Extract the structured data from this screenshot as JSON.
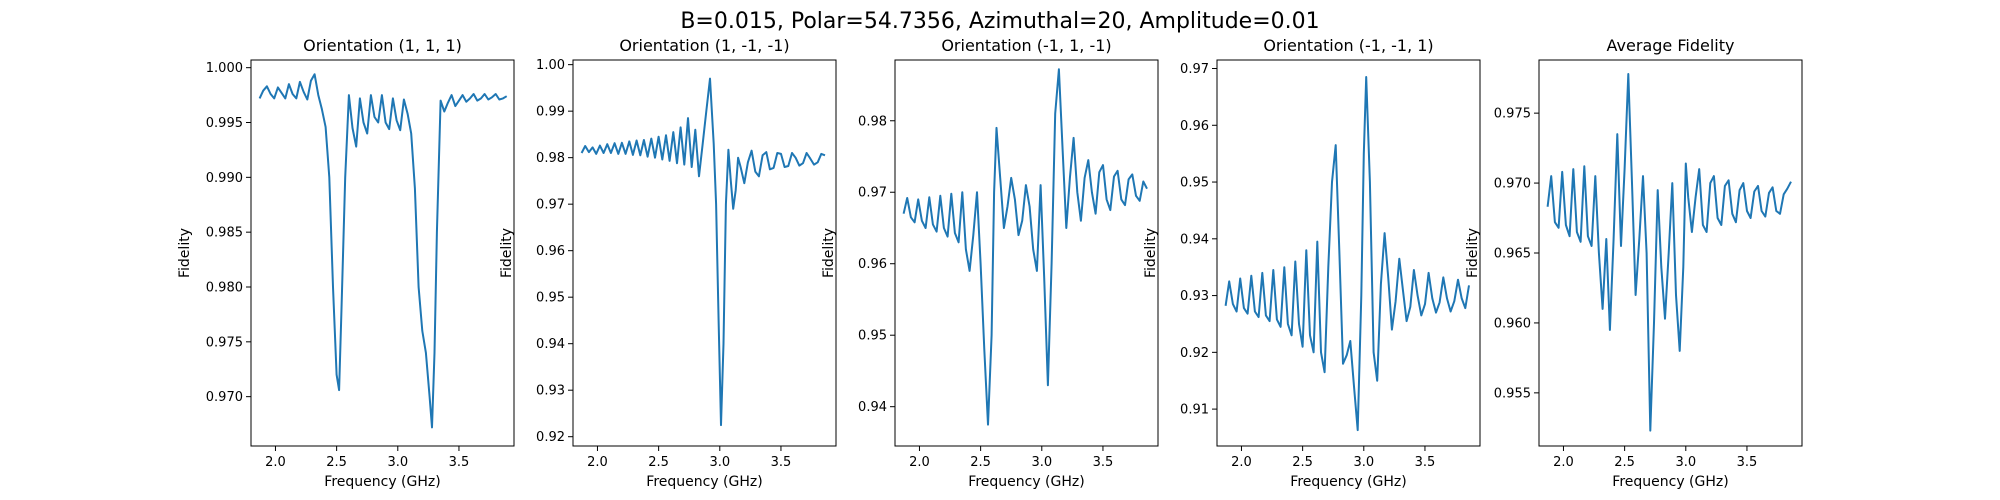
{
  "figure": {
    "suptitle": "B=0.015, Polar=54.7356, Azimuthal=20, Amplitude=0.01"
  },
  "chart_data": [
    {
      "type": "line",
      "title": "Orientation (1, 1, 1)",
      "xlabel": "Frequency (GHz)",
      "ylabel": "Fidelity",
      "xlim": [
        1.8,
        3.95
      ],
      "ylim": [
        0.9655,
        1.0007
      ],
      "xticks": [
        "2.0",
        "2.5",
        "3.0",
        "3.5"
      ],
      "yticks": [
        "0.970",
        "0.975",
        "0.980",
        "0.985",
        "0.990",
        "0.995",
        "1.000"
      ],
      "grid": false,
      "color": "#1f77b4",
      "series": [
        {
          "x": [
            1.87,
            1.9,
            1.93,
            1.96,
            1.99,
            2.02,
            2.05,
            2.08,
            2.11,
            2.14,
            2.17,
            2.2,
            2.23,
            2.26,
            2.29,
            2.32,
            2.35,
            2.38,
            2.41,
            2.44,
            2.47,
            2.5,
            2.52,
            2.54,
            2.57,
            2.6,
            2.63,
            2.66,
            2.69,
            2.72,
            2.75,
            2.78,
            2.81,
            2.84,
            2.87,
            2.9,
            2.93,
            2.96,
            2.99,
            3.02,
            3.05,
            3.08,
            3.11,
            3.14,
            3.17,
            3.2,
            3.23,
            3.26,
            3.28,
            3.3,
            3.32,
            3.35,
            3.38,
            3.41,
            3.44,
            3.47,
            3.5,
            3.53,
            3.56,
            3.59,
            3.62,
            3.65,
            3.68,
            3.71,
            3.74,
            3.77,
            3.8,
            3.83,
            3.86,
            3.89
          ],
          "y": [
            0.9972,
            0.9979,
            0.9983,
            0.9976,
            0.9972,
            0.9982,
            0.9977,
            0.9972,
            0.9985,
            0.9976,
            0.9972,
            0.9987,
            0.9978,
            0.9971,
            0.9988,
            0.9994,
            0.9975,
            0.9962,
            0.9946,
            0.99,
            0.98,
            0.972,
            0.9706,
            0.978,
            0.99,
            0.9975,
            0.9945,
            0.9928,
            0.9972,
            0.995,
            0.994,
            0.9975,
            0.9955,
            0.995,
            0.9975,
            0.995,
            0.9944,
            0.9972,
            0.9952,
            0.9943,
            0.9971,
            0.9958,
            0.994,
            0.989,
            0.98,
            0.976,
            0.974,
            0.97,
            0.9672,
            0.974,
            0.985,
            0.997,
            0.996,
            0.9968,
            0.9975,
            0.9965,
            0.997,
            0.9975,
            0.9969,
            0.9972,
            0.9976,
            0.997,
            0.9972,
            0.9976,
            0.9971,
            0.9973,
            0.9976,
            0.9971,
            0.9972,
            0.9974
          ]
        }
      ]
    },
    {
      "type": "line",
      "title": "Orientation (1, -1, -1)",
      "xlabel": "Frequency (GHz)",
      "ylabel": "Fidelity",
      "xlim": [
        1.8,
        3.95
      ],
      "ylim": [
        0.918,
        1.001
      ],
      "xticks": [
        "2.0",
        "2.5",
        "3.0",
        "3.5"
      ],
      "yticks": [
        "0.92",
        "0.93",
        "0.94",
        "0.95",
        "0.96",
        "0.97",
        "0.98",
        "0.99",
        "1.00"
      ],
      "grid": false,
      "color": "#1f77b4",
      "series": [
        {
          "x": [
            1.87,
            1.9,
            1.93,
            1.96,
            1.99,
            2.02,
            2.05,
            2.08,
            2.11,
            2.14,
            2.17,
            2.2,
            2.23,
            2.26,
            2.29,
            2.32,
            2.35,
            2.38,
            2.41,
            2.44,
            2.47,
            2.5,
            2.53,
            2.56,
            2.59,
            2.62,
            2.65,
            2.68,
            2.71,
            2.74,
            2.77,
            2.8,
            2.83,
            2.86,
            2.89,
            2.92,
            2.95,
            2.97,
            2.99,
            3.01,
            3.03,
            3.05,
            3.07,
            3.09,
            3.11,
            3.13,
            3.15,
            3.17,
            3.2,
            3.23,
            3.26,
            3.29,
            3.32,
            3.35,
            3.38,
            3.41,
            3.44,
            3.47,
            3.5,
            3.53,
            3.56,
            3.59,
            3.62,
            3.65,
            3.68,
            3.71,
            3.74,
            3.77,
            3.8,
            3.83,
            3.86
          ],
          "y": [
            0.981,
            0.9825,
            0.9812,
            0.9822,
            0.9808,
            0.9826,
            0.981,
            0.9829,
            0.981,
            0.9831,
            0.9808,
            0.9832,
            0.9808,
            0.9835,
            0.9806,
            0.9837,
            0.9805,
            0.9838,
            0.9802,
            0.9841,
            0.98,
            0.9845,
            0.9796,
            0.9848,
            0.9793,
            0.9855,
            0.9788,
            0.9865,
            0.9785,
            0.9885,
            0.978,
            0.986,
            0.976,
            0.983,
            0.99,
            0.997,
            0.983,
            0.97,
            0.945,
            0.9225,
            0.94,
            0.97,
            0.9817,
            0.975,
            0.969,
            0.973,
            0.98,
            0.978,
            0.9745,
            0.979,
            0.9815,
            0.977,
            0.976,
            0.9805,
            0.9812,
            0.9775,
            0.9778,
            0.981,
            0.9808,
            0.978,
            0.9782,
            0.981,
            0.98,
            0.9783,
            0.9788,
            0.981,
            0.9798,
            0.9785,
            0.979,
            0.9808,
            0.9805
          ]
        }
      ]
    },
    {
      "type": "line",
      "title": "Orientation (-1, 1, -1)",
      "xlabel": "Frequency (GHz)",
      "ylabel": "Fidelity",
      "xlim": [
        1.8,
        3.95
      ],
      "ylim": [
        0.9345,
        0.9885
      ],
      "xticks": [
        "2.0",
        "2.5",
        "3.0",
        "3.5"
      ],
      "yticks": [
        "0.94",
        "0.95",
        "0.96",
        "0.97",
        "0.98"
      ],
      "grid": false,
      "color": "#1f77b4",
      "series": [
        {
          "x": [
            1.87,
            1.9,
            1.93,
            1.96,
            1.99,
            2.02,
            2.05,
            2.08,
            2.11,
            2.14,
            2.17,
            2.2,
            2.23,
            2.26,
            2.29,
            2.32,
            2.35,
            2.38,
            2.41,
            2.44,
            2.47,
            2.5,
            2.53,
            2.56,
            2.59,
            2.61,
            2.63,
            2.66,
            2.69,
            2.72,
            2.75,
            2.78,
            2.81,
            2.84,
            2.87,
            2.9,
            2.93,
            2.96,
            2.99,
            3.02,
            3.05,
            3.08,
            3.11,
            3.14,
            3.17,
            3.2,
            3.23,
            3.26,
            3.29,
            3.32,
            3.35,
            3.38,
            3.41,
            3.44,
            3.47,
            3.5,
            3.53,
            3.56,
            3.59,
            3.62,
            3.65,
            3.68,
            3.71,
            3.74,
            3.77,
            3.8,
            3.83,
            3.86
          ],
          "y": [
            0.967,
            0.9692,
            0.9665,
            0.9658,
            0.969,
            0.966,
            0.965,
            0.9693,
            0.9655,
            0.9645,
            0.9695,
            0.965,
            0.9638,
            0.9698,
            0.9643,
            0.963,
            0.97,
            0.962,
            0.959,
            0.964,
            0.97,
            0.96,
            0.948,
            0.9375,
            0.95,
            0.97,
            0.979,
            0.972,
            0.965,
            0.968,
            0.972,
            0.969,
            0.964,
            0.966,
            0.971,
            0.968,
            0.962,
            0.959,
            0.971,
            0.958,
            0.943,
            0.96,
            0.981,
            0.9872,
            0.976,
            0.965,
            0.972,
            0.9776,
            0.97,
            0.966,
            0.972,
            0.9745,
            0.97,
            0.967,
            0.9728,
            0.9738,
            0.969,
            0.9675,
            0.9722,
            0.973,
            0.969,
            0.9682,
            0.9718,
            0.9725,
            0.9695,
            0.9688,
            0.9715,
            0.9705
          ]
        }
      ]
    },
    {
      "type": "line",
      "title": "Orientation (-1, -1, 1)",
      "xlabel": "Frequency (GHz)",
      "ylabel": "Fidelity",
      "xlim": [
        1.8,
        3.95
      ],
      "ylim": [
        0.9035,
        0.9715
      ],
      "xticks": [
        "2.0",
        "2.5",
        "3.0",
        "3.5"
      ],
      "yticks": [
        "0.91",
        "0.92",
        "0.93",
        "0.94",
        "0.95",
        "0.96",
        "0.97"
      ],
      "grid": false,
      "color": "#1f77b4",
      "series": [
        {
          "x": [
            1.87,
            1.9,
            1.93,
            1.96,
            1.99,
            2.02,
            2.05,
            2.08,
            2.11,
            2.14,
            2.17,
            2.2,
            2.23,
            2.26,
            2.29,
            2.32,
            2.35,
            2.38,
            2.41,
            2.44,
            2.47,
            2.5,
            2.53,
            2.56,
            2.59,
            2.62,
            2.65,
            2.68,
            2.71,
            2.74,
            2.77,
            2.8,
            2.83,
            2.86,
            2.89,
            2.92,
            2.95,
            2.98,
            3.0,
            3.02,
            3.05,
            3.08,
            3.11,
            3.14,
            3.17,
            3.2,
            3.23,
            3.26,
            3.29,
            3.32,
            3.35,
            3.38,
            3.41,
            3.44,
            3.47,
            3.5,
            3.53,
            3.56,
            3.59,
            3.62,
            3.65,
            3.68,
            3.71,
            3.74,
            3.77,
            3.8,
            3.83,
            3.86
          ],
          "y": [
            0.9282,
            0.9325,
            0.9285,
            0.9272,
            0.933,
            0.9278,
            0.9268,
            0.9335,
            0.9272,
            0.9262,
            0.934,
            0.9265,
            0.9255,
            0.9345,
            0.9258,
            0.9245,
            0.935,
            0.925,
            0.923,
            0.936,
            0.925,
            0.921,
            0.938,
            0.923,
            0.92,
            0.9395,
            0.92,
            0.9165,
            0.935,
            0.95,
            0.9565,
            0.938,
            0.918,
            0.9195,
            0.922,
            0.914,
            0.9063,
            0.93,
            0.955,
            0.9685,
            0.95,
            0.92,
            0.915,
            0.932,
            0.941,
            0.933,
            0.924,
            0.929,
            0.9365,
            0.931,
            0.9255,
            0.928,
            0.9345,
            0.93,
            0.9265,
            0.9285,
            0.934,
            0.9295,
            0.927,
            0.9288,
            0.9332,
            0.9295,
            0.9272,
            0.929,
            0.9328,
            0.9295,
            0.9278,
            0.9318
          ]
        }
      ]
    },
    {
      "type": "line",
      "title": "Average Fidelity",
      "xlabel": "Frequency (GHz)",
      "ylabel": "Fidelity",
      "xlim": [
        1.8,
        3.95
      ],
      "ylim": [
        0.9512,
        0.9788
      ],
      "xticks": [
        "2.0",
        "2.5",
        "3.0",
        "3.5"
      ],
      "yticks": [
        "0.955",
        "0.960",
        "0.965",
        "0.970",
        "0.975"
      ],
      "grid": false,
      "color": "#1f77b4",
      "series": [
        {
          "x": [
            1.87,
            1.9,
            1.93,
            1.96,
            1.99,
            2.02,
            2.05,
            2.08,
            2.11,
            2.14,
            2.17,
            2.2,
            2.23,
            2.26,
            2.29,
            2.32,
            2.35,
            2.38,
            2.41,
            2.44,
            2.47,
            2.5,
            2.53,
            2.56,
            2.59,
            2.62,
            2.65,
            2.68,
            2.71,
            2.74,
            2.77,
            2.8,
            2.83,
            2.86,
            2.89,
            2.92,
            2.95,
            2.98,
            3.0,
            3.02,
            3.05,
            3.08,
            3.11,
            3.14,
            3.17,
            3.2,
            3.23,
            3.26,
            3.29,
            3.32,
            3.35,
            3.38,
            3.41,
            3.44,
            3.47,
            3.5,
            3.53,
            3.56,
            3.59,
            3.62,
            3.65,
            3.68,
            3.71,
            3.74,
            3.77,
            3.8,
            3.83,
            3.86
          ],
          "y": [
            0.9683,
            0.9705,
            0.9672,
            0.9668,
            0.9708,
            0.967,
            0.9662,
            0.971,
            0.9665,
            0.9658,
            0.9712,
            0.9662,
            0.9655,
            0.9705,
            0.965,
            0.961,
            0.966,
            0.9595,
            0.966,
            0.9735,
            0.9655,
            0.971,
            0.9778,
            0.97,
            0.962,
            0.966,
            0.9705,
            0.965,
            0.9523,
            0.96,
            0.9695,
            0.964,
            0.9603,
            0.965,
            0.97,
            0.962,
            0.958,
            0.964,
            0.9714,
            0.969,
            0.9665,
            0.969,
            0.971,
            0.967,
            0.9665,
            0.97,
            0.9705,
            0.9675,
            0.967,
            0.9698,
            0.9702,
            0.9678,
            0.9672,
            0.9695,
            0.97,
            0.968,
            0.9675,
            0.9694,
            0.9698,
            0.968,
            0.9676,
            0.9693,
            0.9697,
            0.968,
            0.9678,
            0.9692,
            0.9696,
            0.9701
          ]
        }
      ]
    }
  ]
}
